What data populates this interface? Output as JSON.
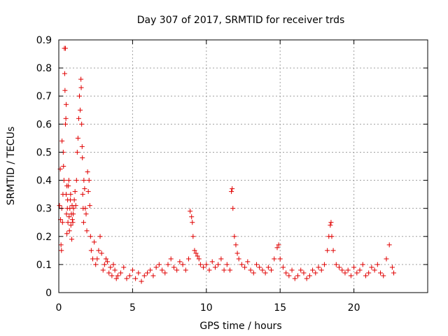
{
  "chart_data": {
    "type": "scatter",
    "title": "Day 307 of 2017, SRMTID for receiver trds",
    "xlabel": "GPS time / hours",
    "ylabel": "SRMTID / TECUs",
    "xlim": [
      0,
      25
    ],
    "ylim": [
      0,
      0.9
    ],
    "xticks": [
      0,
      5,
      10,
      15,
      20
    ],
    "xtick_labels": [
      "0",
      "5",
      "10",
      "15",
      "20"
    ],
    "yticks": [
      0,
      0.1,
      0.2,
      0.3,
      0.4,
      0.5,
      0.6,
      0.7,
      0.8,
      0.9
    ],
    "ytick_labels": [
      "0",
      "0.1",
      "0.2",
      "0.3",
      "0.4",
      "0.5",
      "0.6",
      "0.7",
      "0.8",
      "0.9"
    ],
    "grid": true,
    "marker": "plus",
    "series": [
      {
        "name": "SRMTID",
        "color": "#e00000",
        "x": [
          0.05,
          0.1,
          0.12,
          0.15,
          0.18,
          0.2,
          0.22,
          0.25,
          0.28,
          0.3,
          0.32,
          0.35,
          0.38,
          0.4,
          0.42,
          0.45,
          0.45,
          0.48,
          0.5,
          0.5,
          0.52,
          0.55,
          0.55,
          0.58,
          0.6,
          0.62,
          0.65,
          0.68,
          0.7,
          0.72,
          0.75,
          0.78,
          0.8,
          0.82,
          0.85,
          0.88,
          0.9,
          0.92,
          0.95,
          0.98,
          1.0,
          1.05,
          1.1,
          1.15,
          1.2,
          1.25,
          1.3,
          1.35,
          1.4,
          1.45,
          1.5,
          1.52,
          1.55,
          1.58,
          1.6,
          1.62,
          1.65,
          1.68,
          1.7,
          1.75,
          1.8,
          1.85,
          1.9,
          1.95,
          2.0,
          2.05,
          2.1,
          2.15,
          2.2,
          2.3,
          2.4,
          2.5,
          2.6,
          2.7,
          2.8,
          2.9,
          3.0,
          3.1,
          3.2,
          3.3,
          3.4,
          3.5,
          3.6,
          3.7,
          3.8,
          3.9,
          4.0,
          4.2,
          4.4,
          4.6,
          4.8,
          5.0,
          5.2,
          5.4,
          5.6,
          5.8,
          6.0,
          6.2,
          6.4,
          6.6,
          6.8,
          7.0,
          7.2,
          7.4,
          7.6,
          7.8,
          8.0,
          8.2,
          8.4,
          8.6,
          8.8,
          8.9,
          9.0,
          9.05,
          9.1,
          9.2,
          9.3,
          9.4,
          9.5,
          9.6,
          9.8,
          10.0,
          10.2,
          10.4,
          10.6,
          10.8,
          11.0,
          11.2,
          11.4,
          11.6,
          11.7,
          11.75,
          11.8,
          11.9,
          12.0,
          12.1,
          12.2,
          12.4,
          12.6,
          12.8,
          13.0,
          13.2,
          13.4,
          13.6,
          13.8,
          14.0,
          14.2,
          14.4,
          14.6,
          14.8,
          14.9,
          15.0,
          15.2,
          15.4,
          15.6,
          15.8,
          16.0,
          16.2,
          16.4,
          16.6,
          16.8,
          17.0,
          17.2,
          17.4,
          17.6,
          17.8,
          18.0,
          18.2,
          18.3,
          18.4,
          18.45,
          18.5,
          18.6,
          18.8,
          19.0,
          19.2,
          19.4,
          19.6,
          19.8,
          20.0,
          20.2,
          20.4,
          20.6,
          20.8,
          21.0,
          21.2,
          21.4,
          21.6,
          21.8,
          22.0,
          22.2,
          22.4,
          22.6,
          22.7
        ],
        "y": [
          0.31,
          0.44,
          0.26,
          0.17,
          0.15,
          0.3,
          0.54,
          0.25,
          0.35,
          0.5,
          0.45,
          0.4,
          0.87,
          0.78,
          0.72,
          0.87,
          0.6,
          0.62,
          0.67,
          0.35,
          0.28,
          0.38,
          0.21,
          0.3,
          0.33,
          0.25,
          0.38,
          0.4,
          0.27,
          0.22,
          0.3,
          0.33,
          0.35,
          0.24,
          0.28,
          0.19,
          0.31,
          0.26,
          0.25,
          0.28,
          0.3,
          0.33,
          0.36,
          0.31,
          0.4,
          0.5,
          0.55,
          0.62,
          0.7,
          0.65,
          0.76,
          0.73,
          0.6,
          0.52,
          0.48,
          0.35,
          0.3,
          0.25,
          0.4,
          0.37,
          0.3,
          0.28,
          0.22,
          0.43,
          0.36,
          0.4,
          0.31,
          0.2,
          0.15,
          0.12,
          0.18,
          0.1,
          0.12,
          0.15,
          0.2,
          0.14,
          0.08,
          0.1,
          0.12,
          0.11,
          0.07,
          0.09,
          0.06,
          0.1,
          0.08,
          0.05,
          0.06,
          0.07,
          0.09,
          0.05,
          0.06,
          0.08,
          0.05,
          0.07,
          0.04,
          0.06,
          0.07,
          0.08,
          0.06,
          0.09,
          0.1,
          0.08,
          0.07,
          0.1,
          0.12,
          0.09,
          0.08,
          0.11,
          0.1,
          0.08,
          0.12,
          0.29,
          0.27,
          0.25,
          0.2,
          0.15,
          0.14,
          0.13,
          0.12,
          0.1,
          0.09,
          0.1,
          0.08,
          0.11,
          0.09,
          0.1,
          0.12,
          0.08,
          0.1,
          0.08,
          0.36,
          0.37,
          0.3,
          0.2,
          0.17,
          0.14,
          0.12,
          0.1,
          0.09,
          0.11,
          0.08,
          0.07,
          0.1,
          0.09,
          0.08,
          0.07,
          0.09,
          0.08,
          0.12,
          0.16,
          0.17,
          0.12,
          0.09,
          0.07,
          0.06,
          0.08,
          0.05,
          0.06,
          0.08,
          0.07,
          0.05,
          0.06,
          0.08,
          0.07,
          0.09,
          0.08,
          0.1,
          0.15,
          0.2,
          0.24,
          0.25,
          0.2,
          0.15,
          0.1,
          0.09,
          0.08,
          0.07,
          0.08,
          0.06,
          0.09,
          0.07,
          0.08,
          0.1,
          0.06,
          0.07,
          0.09,
          0.08,
          0.1,
          0.07,
          0.06,
          0.12,
          0.17,
          0.09,
          0.07
        ]
      }
    ]
  }
}
